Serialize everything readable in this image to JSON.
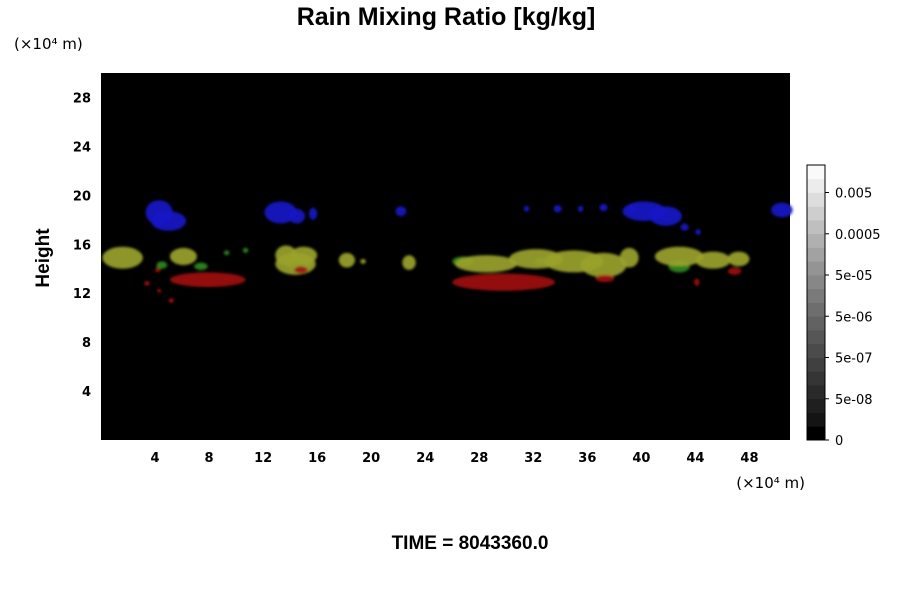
{
  "chart_data": {
    "type": "heatmap",
    "title": "Rain Mixing Ratio [kg/kg]",
    "ylabel": "Height",
    "x_unit": "(×10⁴ m)",
    "y_unit": "(×10⁴ m)",
    "xlim": [
      0,
      51
    ],
    "ylim": [
      0,
      30
    ],
    "x_ticks": [
      4,
      8,
      12,
      16,
      20,
      24,
      28,
      32,
      36,
      40,
      44,
      48
    ],
    "y_ticks": [
      4,
      8,
      12,
      16,
      20,
      24,
      28
    ],
    "colorbar": {
      "ticks": [
        "0",
        "5e-08",
        "5e-07",
        "5e-06",
        "5e-05",
        "0.0005",
        "0.005"
      ],
      "levels": [
        "#000000",
        "#141414",
        "#1f1f1f",
        "#2a2a2a",
        "#353535",
        "#404040",
        "#4b4b4b",
        "#565656",
        "#626262",
        "#6e6e6e",
        "#7a7a7a",
        "#878787",
        "#949494",
        "#a2a2a2",
        "#b0b0b0",
        "#bfbfbf",
        "#cecece",
        "#dddddd",
        "#ececec",
        "#fafafa"
      ]
    },
    "background_color": "#000000",
    "layer_colors": {
      "blue": "#1a1ac8",
      "green": "#2e8a1e",
      "olive": "#9aa22a",
      "red": "#a01212"
    },
    "features": [
      {
        "color": "blue",
        "shapes": [
          {
            "x": 4.3,
            "y": 18.6,
            "rx": 1.0,
            "ry": 1.0
          },
          {
            "x": 5.0,
            "y": 17.9,
            "rx": 1.3,
            "ry": 0.8
          },
          {
            "x": 13.3,
            "y": 18.6,
            "rx": 1.2,
            "ry": 0.9
          },
          {
            "x": 14.5,
            "y": 18.3,
            "rx": 0.6,
            "ry": 0.6
          },
          {
            "x": 15.7,
            "y": 18.5,
            "rx": 0.3,
            "ry": 0.5
          },
          {
            "x": 22.2,
            "y": 18.7,
            "rx": 0.4,
            "ry": 0.4
          },
          {
            "x": 31.5,
            "y": 18.9,
            "rx": 0.2,
            "ry": 0.25
          },
          {
            "x": 33.8,
            "y": 18.9,
            "rx": 0.3,
            "ry": 0.3
          },
          {
            "x": 35.5,
            "y": 18.9,
            "rx": 0.2,
            "ry": 0.25
          },
          {
            "x": 37.2,
            "y": 19.0,
            "rx": 0.3,
            "ry": 0.3
          },
          {
            "x": 39.3,
            "y": 18.9,
            "rx": 0.3,
            "ry": 0.3
          },
          {
            "x": 40.2,
            "y": 18.7,
            "rx": 1.6,
            "ry": 0.8
          },
          {
            "x": 41.8,
            "y": 18.3,
            "rx": 1.2,
            "ry": 0.8
          },
          {
            "x": 43.2,
            "y": 17.4,
            "rx": 0.3,
            "ry": 0.3
          },
          {
            "x": 44.2,
            "y": 17.0,
            "rx": 0.2,
            "ry": 0.25
          },
          {
            "x": 50.4,
            "y": 18.8,
            "rx": 0.8,
            "ry": 0.6
          }
        ]
      },
      {
        "color": "green",
        "shapes": [
          {
            "x": 4.5,
            "y": 14.3,
            "rx": 0.4,
            "ry": 0.3
          },
          {
            "x": 7.4,
            "y": 14.2,
            "rx": 0.5,
            "ry": 0.3
          },
          {
            "x": 9.3,
            "y": 15.3,
            "rx": 0.2,
            "ry": 0.2
          },
          {
            "x": 10.7,
            "y": 15.5,
            "rx": 0.2,
            "ry": 0.2
          },
          {
            "x": 14.6,
            "y": 14.4,
            "rx": 1.0,
            "ry": 0.4
          },
          {
            "x": 26.8,
            "y": 14.6,
            "rx": 0.8,
            "ry": 0.4
          },
          {
            "x": 32.5,
            "y": 14.6,
            "rx": 0.4,
            "ry": 0.3
          },
          {
            "x": 42.8,
            "y": 14.2,
            "rx": 0.8,
            "ry": 0.5
          }
        ]
      },
      {
        "color": "olive",
        "shapes": [
          {
            "x": 1.6,
            "y": 14.9,
            "rx": 1.5,
            "ry": 0.9
          },
          {
            "x": 6.1,
            "y": 15.0,
            "rx": 1.0,
            "ry": 0.7
          },
          {
            "x": 13.7,
            "y": 15.1,
            "rx": 0.8,
            "ry": 0.8
          },
          {
            "x": 14.4,
            "y": 14.4,
            "rx": 1.5,
            "ry": 0.9
          },
          {
            "x": 15.0,
            "y": 15.1,
            "rx": 1.0,
            "ry": 0.7
          },
          {
            "x": 18.2,
            "y": 14.7,
            "rx": 0.6,
            "ry": 0.6
          },
          {
            "x": 19.4,
            "y": 14.6,
            "rx": 0.2,
            "ry": 0.2
          },
          {
            "x": 22.8,
            "y": 14.5,
            "rx": 0.5,
            "ry": 0.6
          },
          {
            "x": 28.5,
            "y": 14.4,
            "rx": 2.3,
            "ry": 0.7
          },
          {
            "x": 32.2,
            "y": 14.8,
            "rx": 2.0,
            "ry": 0.8
          },
          {
            "x": 35.0,
            "y": 14.6,
            "rx": 2.2,
            "ry": 0.9
          },
          {
            "x": 37.2,
            "y": 14.3,
            "rx": 1.7,
            "ry": 1.0
          },
          {
            "x": 39.1,
            "y": 14.9,
            "rx": 0.7,
            "ry": 0.8
          },
          {
            "x": 42.8,
            "y": 15.0,
            "rx": 1.8,
            "ry": 0.8
          },
          {
            "x": 45.3,
            "y": 14.7,
            "rx": 1.3,
            "ry": 0.7
          },
          {
            "x": 47.2,
            "y": 14.8,
            "rx": 0.8,
            "ry": 0.6
          }
        ]
      },
      {
        "color": "red",
        "shapes": [
          {
            "x": 7.9,
            "y": 13.1,
            "rx": 2.8,
            "ry": 0.6
          },
          {
            "x": 4.2,
            "y": 13.9,
            "rx": 0.2,
            "ry": 0.2
          },
          {
            "x": 3.4,
            "y": 12.8,
            "rx": 0.2,
            "ry": 0.2
          },
          {
            "x": 4.3,
            "y": 12.2,
            "rx": 0.15,
            "ry": 0.15
          },
          {
            "x": 5.2,
            "y": 11.4,
            "rx": 0.2,
            "ry": 0.2
          },
          {
            "x": 14.8,
            "y": 13.9,
            "rx": 0.5,
            "ry": 0.3
          },
          {
            "x": 29.8,
            "y": 12.9,
            "rx": 3.8,
            "ry": 0.7
          },
          {
            "x": 37.3,
            "y": 13.2,
            "rx": 0.7,
            "ry": 0.3
          },
          {
            "x": 44.1,
            "y": 12.9,
            "rx": 0.2,
            "ry": 0.3
          },
          {
            "x": 46.9,
            "y": 13.8,
            "rx": 0.5,
            "ry": 0.3
          }
        ]
      }
    ]
  },
  "footer": {
    "time_label": "TIME = 8043360.0"
  }
}
